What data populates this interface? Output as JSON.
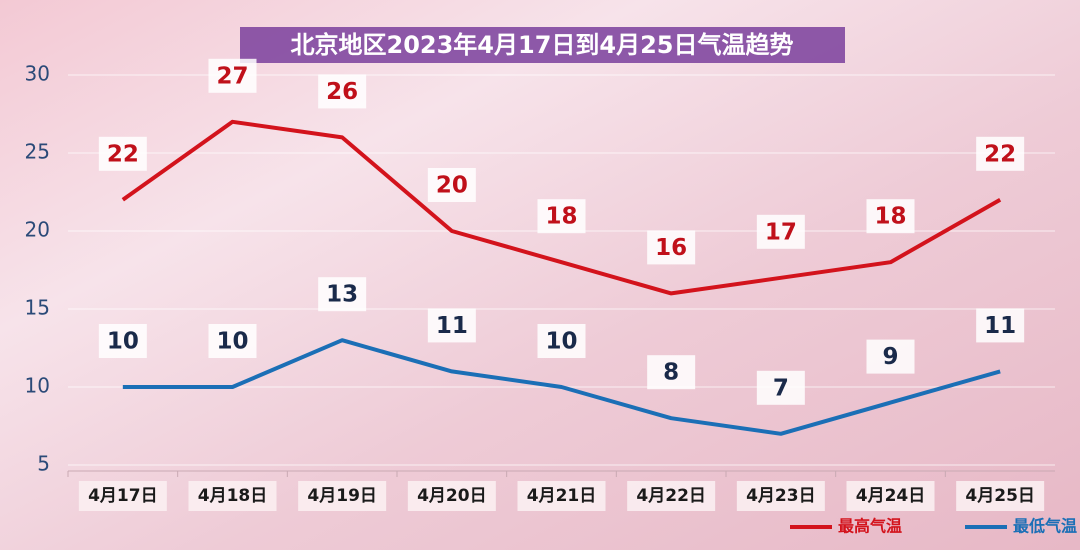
{
  "chart_data": {
    "type": "line",
    "title": "北京地区2023年4月17日到4月25日气温趋势",
    "categories": [
      "4月17日",
      "4月18日",
      "4月19日",
      "4月20日",
      "4月21日",
      "4月22日",
      "4月23日",
      "4月24日",
      "4月25日"
    ],
    "series": [
      {
        "name": "最高气温",
        "color": "#d3131c",
        "values": [
          22,
          27,
          26,
          20,
          18,
          16,
          17,
          18,
          22
        ]
      },
      {
        "name": "最低气温",
        "color": "#1b6fb6",
        "values": [
          10,
          10,
          13,
          11,
          10,
          8,
          7,
          9,
          11
        ]
      }
    ],
    "ylim": [
      5,
      30
    ],
    "yticks": [
      5,
      10,
      15,
      20,
      25,
      30
    ],
    "grid": true,
    "legend": "bottom-right"
  }
}
